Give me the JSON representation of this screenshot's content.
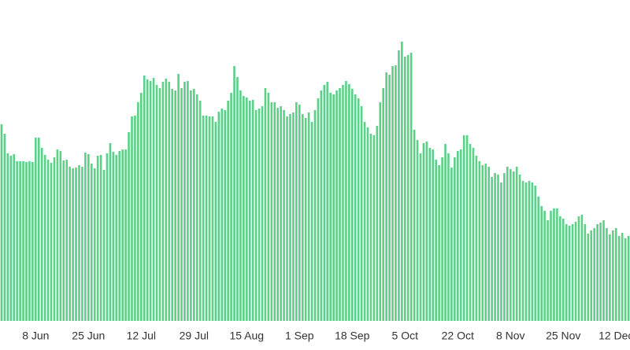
{
  "chart_data": {
    "type": "bar",
    "categories": [
      null,
      null,
      null,
      null,
      null,
      null,
      null,
      null,
      null,
      null,
      null,
      "8 Jun",
      null,
      null,
      null,
      null,
      null,
      null,
      null,
      null,
      null,
      null,
      null,
      null,
      null,
      null,
      null,
      null,
      "25 Jun",
      null,
      null,
      null,
      null,
      null,
      null,
      null,
      null,
      null,
      null,
      null,
      null,
      null,
      null,
      null,
      null,
      "12 Jul",
      null,
      null,
      null,
      null,
      null,
      null,
      null,
      null,
      null,
      null,
      null,
      null,
      null,
      null,
      null,
      null,
      "29 Jul",
      null,
      null,
      null,
      null,
      null,
      null,
      null,
      null,
      null,
      null,
      null,
      null,
      null,
      null,
      null,
      null,
      "15 Aug",
      null,
      null,
      null,
      null,
      null,
      null,
      null,
      null,
      null,
      null,
      null,
      null,
      null,
      null,
      null,
      null,
      "1 Sep",
      null,
      null,
      null,
      null,
      null,
      null,
      null,
      null,
      null,
      null,
      null,
      null,
      null,
      null,
      null,
      null,
      "18 Sep",
      null,
      null,
      null,
      null,
      null,
      null,
      null,
      null,
      null,
      null,
      null,
      null,
      null,
      null,
      null,
      null,
      "5 Oct",
      null,
      null,
      null,
      null,
      null,
      null,
      null,
      null,
      null,
      null,
      null,
      null,
      null,
      null,
      null,
      null,
      "22 Oct",
      null,
      null,
      null,
      null,
      null,
      null,
      null,
      null,
      null,
      null,
      null,
      null,
      null,
      null,
      null,
      null,
      "8 Nov",
      null,
      null,
      null,
      null,
      null,
      null,
      null,
      null,
      null,
      null,
      null,
      null,
      null,
      null,
      null,
      null,
      "25 Nov",
      null,
      null,
      null,
      null,
      null,
      null,
      null,
      null,
      null,
      null,
      null,
      null,
      null,
      null,
      null,
      null,
      "12 Dec",
      null,
      null,
      null,
      null
    ],
    "values": [
      250,
      238,
      213,
      210,
      212,
      203,
      203,
      203,
      202,
      203,
      202,
      233,
      233,
      220,
      211,
      205,
      201,
      208,
      218,
      216,
      204,
      205,
      196,
      194,
      195,
      198,
      196,
      214,
      212,
      200,
      194,
      210,
      211,
      192,
      213,
      226,
      215,
      211,
      216,
      218,
      218,
      240,
      260,
      261,
      278,
      290,
      312,
      307,
      305,
      309,
      300,
      296,
      304,
      308,
      304,
      295,
      293,
      314,
      296,
      304,
      305,
      293,
      295,
      288,
      280,
      261,
      261,
      260,
      260,
      253,
      266,
      270,
      268,
      280,
      290,
      324,
      310,
      293,
      286,
      284,
      280,
      281,
      268,
      270,
      273,
      296,
      290,
      278,
      278,
      271,
      273,
      268,
      260,
      263,
      265,
      278,
      275,
      263,
      258,
      265,
      253,
      268,
      283,
      293,
      300,
      304,
      290,
      288,
      293,
      296,
      300,
      305,
      301,
      295,
      288,
      283,
      273,
      253,
      246,
      238,
      236,
      248,
      278,
      296,
      316,
      313,
      324,
      325,
      344,
      355,
      336,
      338,
      341,
      243,
      230,
      213,
      226,
      228,
      220,
      218,
      205,
      198,
      208,
      225,
      213,
      195,
      208,
      216,
      218,
      236,
      236,
      225,
      220,
      210,
      203,
      198,
      200,
      196,
      183,
      188,
      186,
      176,
      188,
      196,
      193,
      190,
      196,
      186,
      178,
      176,
      178,
      176,
      172,
      158,
      146,
      140,
      128,
      140,
      143,
      143,
      133,
      130,
      123,
      121,
      123,
      126,
      133,
      135,
      123,
      111,
      115,
      118,
      123,
      125,
      128,
      118,
      110,
      115,
      118,
      108,
      112,
      105,
      108
    ],
    "color": "#5ad186",
    "ylim": [
      0,
      408
    ]
  }
}
